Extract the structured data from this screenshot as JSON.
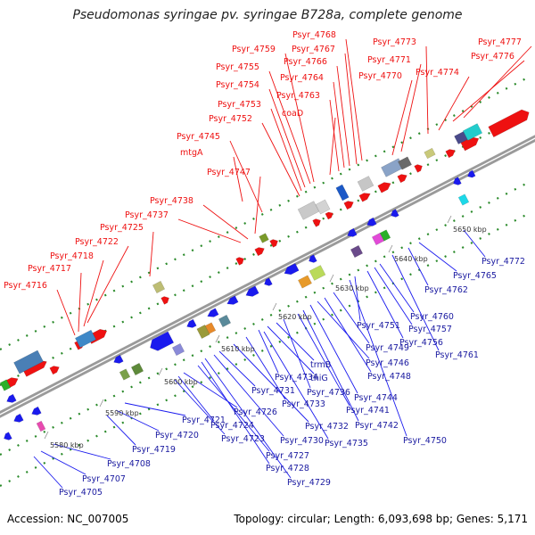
{
  "title": "Pseudomonas syringae pv. syringae B728a, complete genome",
  "footer": {
    "accession": "Accession: NC_007005",
    "summary": "Topology: circular; Length: 6,093,698 bp; Genes: 5,171"
  },
  "colors": {
    "forward_strand": "#ee1111",
    "reverse_strand": "#1a1aee",
    "backbone": "#808080",
    "tick": "#2a8a2a"
  },
  "scale_labels": [
    "5580 kbp",
    "5590 kbp",
    "5600 kbp",
    "5610 kbp",
    "5620 kbp",
    "5630 kbp",
    "5640 kbp",
    "5650 kbp"
  ],
  "forward_labels": [
    "Psyr_4716",
    "Psyr_4717",
    "Psyr_4718",
    "Psyr_4722",
    "Psyr_4725",
    "Psyr_4737",
    "Psyr_4738",
    "Psyr_4747",
    "mtgA",
    "Psyr_4745",
    "Psyr_4752",
    "Psyr_4753",
    "Psyr_4754",
    "Psyr_4755",
    "Psyr_4759",
    "coaD",
    "Psyr_4763",
    "Psyr_4764",
    "Psyr_4766",
    "Psyr_4767",
    "Psyr_4768",
    "Psyr_4770",
    "Psyr_4771",
    "Psyr_4773",
    "Psyr_4774",
    "Psyr_4776",
    "Psyr_4777"
  ],
  "reverse_labels": [
    "Psyr_4705",
    "Psyr_4707",
    "Psyr_4708",
    "Psyr_4719",
    "Psyr_4720",
    "Psyr_4721",
    "Psyr_4723",
    "Psyr_4724",
    "Psyr_4726",
    "Psyr_4727",
    "Psyr_4728",
    "Psyr_4729",
    "Psyr_4730",
    "Psyr_4731",
    "Psyr_4732",
    "Psyr_4733",
    "Psyr_4734",
    "thiG",
    "trmB",
    "Psyr_4735",
    "Psyr_4736",
    "Psyr_4741",
    "Psyr_4742",
    "Psyr_4744",
    "Psyr_4746",
    "Psyr_4748",
    "Psyr_4749",
    "Psyr_4750",
    "Psyr_4751",
    "Psyr_4756",
    "Psyr_4757",
    "Psyr_4760",
    "Psyr_4761",
    "Psyr_4762",
    "Psyr_4765",
    "Psyr_4772"
  ]
}
